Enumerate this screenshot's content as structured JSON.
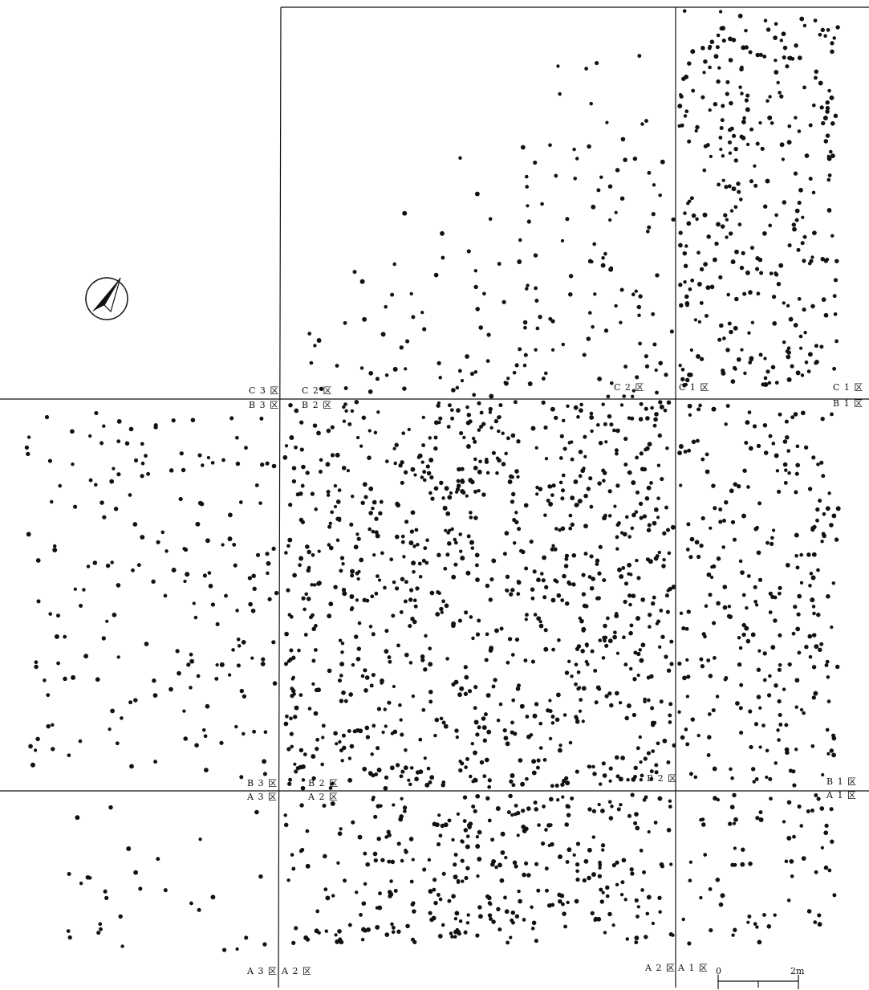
{
  "zone_labels": {
    "c3_top": "C 3 区",
    "c2_top_left": "C 2 区",
    "c2_top_right": "C 2 区",
    "c1_top_left": "C 1 区",
    "c1_top_right": "C 1 区",
    "b3_top": "B 3 区",
    "b2_top_left": "B 2 区",
    "b1_top_right": "B 1 区",
    "b3_bottom": "B 3 区",
    "b2_bottom_left": "B 2 区",
    "b2_bottom_right": "B 2 区",
    "b1_bottom_right": "B 1 区",
    "a3_top": "A 3 区",
    "a2_top_left": "A 2 区",
    "a1_top_right": "A 1 区",
    "a3_bottom": "A 3 区",
    "a2_bottom_left": "A 2 区",
    "a2_bottom_right": "A 2 区",
    "a1_bottom_left": "A 1 区"
  },
  "scale_bar": {
    "start_label": "0",
    "end_label": "2m"
  },
  "colors": {
    "ink": "#111111",
    "background": "#ffffff"
  },
  "north_arrow_icon": "north-arrow-icon"
}
